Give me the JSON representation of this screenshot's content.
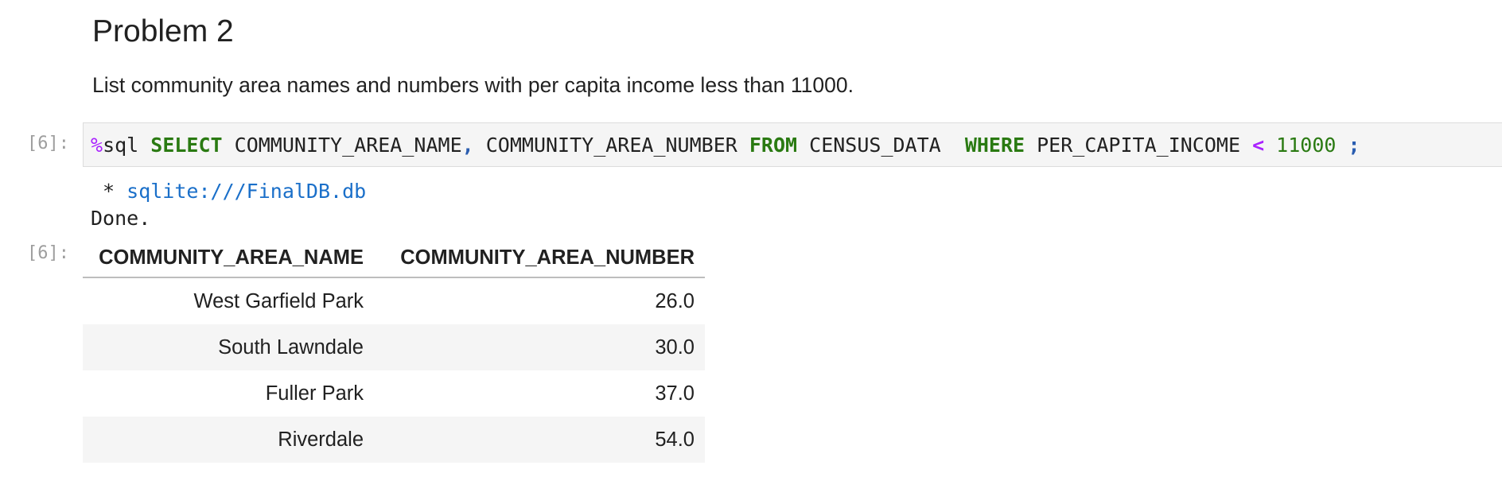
{
  "markdown": {
    "title": "Problem 2",
    "text": "List community area names and numbers with per capita income less than 11000."
  },
  "code_cell": {
    "prompt": "[6]:",
    "tokens": {
      "magic_sign": "%",
      "magic_name": "sql ",
      "kw_select": "SELECT",
      "col1": " COMMUNITY_AREA_NAME",
      "comma": ",",
      "col2": " COMMUNITY_AREA_NUMBER ",
      "kw_from": "FROM",
      "table": " CENSUS_DATA  ",
      "kw_where": "WHERE",
      "col3": " PER_CAPITA_INCOME ",
      "op_lt": "<",
      "num": " 11000",
      "semicolon": " ;"
    }
  },
  "output": {
    "stream_bullet": " * ",
    "connection": "sqlite:///FinalDB.db",
    "status": "Done.",
    "prompt": "[6]:",
    "table": {
      "columns": [
        "COMMUNITY_AREA_NAME",
        "COMMUNITY_AREA_NUMBER"
      ],
      "rows": [
        [
          "West Garfield Park",
          "26.0"
        ],
        [
          "South Lawndale",
          "30.0"
        ],
        [
          "Fuller Park",
          "37.0"
        ],
        [
          "Riverdale",
          "54.0"
        ]
      ]
    }
  },
  "colors": {
    "keyword": "#2a7a12",
    "magic": "#aa22ff",
    "link": "#1a6fc9",
    "prompt": "#9e9e9e"
  }
}
